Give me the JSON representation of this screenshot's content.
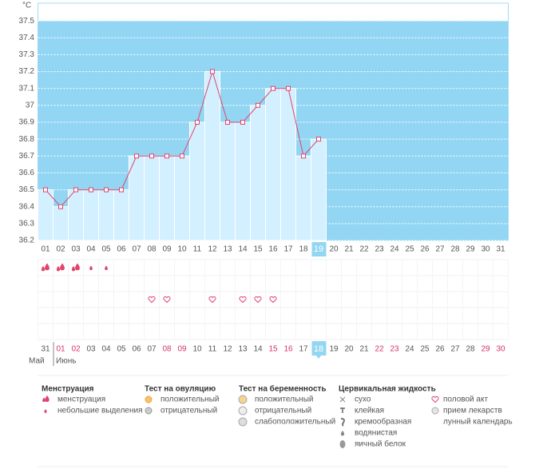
{
  "chart_data": {
    "type": "line",
    "y_label": "°C",
    "categories": [
      "01",
      "02",
      "03",
      "04",
      "05",
      "06",
      "07",
      "08",
      "09",
      "10",
      "11",
      "12",
      "13",
      "14",
      "15",
      "16",
      "17",
      "18",
      "19",
      "20",
      "21",
      "22",
      "23",
      "24",
      "25",
      "26",
      "27",
      "28",
      "29",
      "30",
      "31"
    ],
    "series": [
      {
        "color": "#e0446e",
        "values": [
          36.5,
          36.4,
          36.5,
          36.5,
          36.5,
          36.5,
          36.7,
          36.7,
          36.7,
          36.7,
          36.9,
          37.2,
          36.9,
          36.9,
          37.0,
          37.1,
          37.1,
          36.7,
          36.8,
          null,
          null,
          null,
          null,
          null,
          null,
          null,
          null,
          null,
          null,
          null,
          null
        ]
      }
    ],
    "ylim": [
      36.2,
      37.6
    ],
    "yticks": [
      36.2,
      36.3,
      36.4,
      36.5,
      36.6,
      36.7,
      36.8,
      36.9,
      37,
      37.1,
      37.2,
      37.3,
      37.4,
      37.5
    ],
    "grid": true,
    "highlighted": "19"
  },
  "events": {
    "menstruation": [
      {
        "day": "01",
        "size": "heavy"
      },
      {
        "day": "02",
        "size": "heavy"
      },
      {
        "day": "03",
        "size": "heavy"
      },
      {
        "day": "04",
        "size": "light"
      },
      {
        "day": "05",
        "size": "light"
      }
    ],
    "intercourse": [
      "08",
      "09",
      "12",
      "14",
      "15",
      "16"
    ]
  },
  "calendar": {
    "dates": [
      "31",
      "01",
      "02",
      "03",
      "04",
      "05",
      "06",
      "07",
      "08",
      "09",
      "10",
      "11",
      "12",
      "13",
      "14",
      "15",
      "16",
      "17",
      "18",
      "19",
      "20",
      "21",
      "22",
      "23",
      "24",
      "25",
      "26",
      "27",
      "28",
      "29",
      "30"
    ],
    "weekends": [
      "01",
      "02",
      "08",
      "09",
      "15",
      "16",
      "22",
      "23",
      "29",
      "30"
    ],
    "today": "18",
    "months": [
      "Май",
      "Июнь"
    ]
  },
  "legend": [
    {
      "title": "Менструация",
      "items": [
        "менструация",
        "небольшие выделения"
      ]
    },
    {
      "title": "Тест на овуляцию",
      "items": [
        "положительный",
        "отрицательный"
      ]
    },
    {
      "title": "Тест на беременность",
      "items": [
        "положительный",
        "отрицательный",
        "слабоположительный"
      ]
    },
    {
      "title": "Цервикальная жидкость",
      "items": [
        "сухо",
        "клейкая",
        "кремообразная",
        "водянистая",
        "яичный белок"
      ]
    },
    {
      "items": [
        "половой акт",
        "прием лекарств",
        "лунный календарь"
      ]
    }
  ]
}
